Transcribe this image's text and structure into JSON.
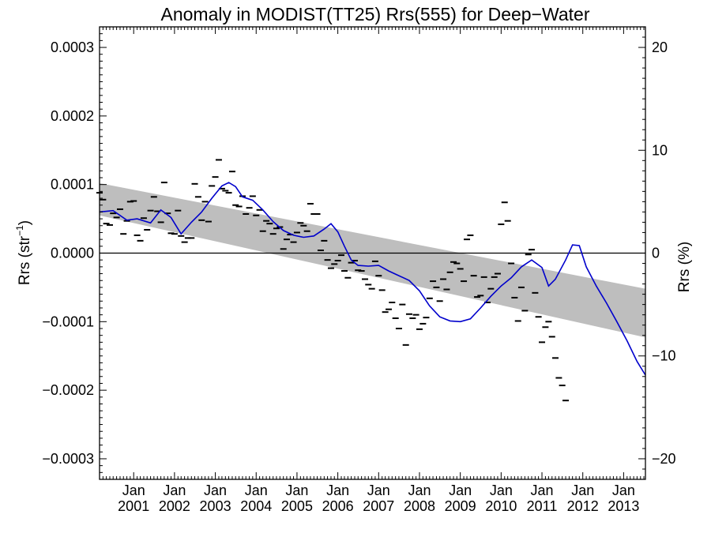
{
  "chart_data": {
    "type": "scatter",
    "title": "Anomaly in MODIST(TT25) Rrs(555) for Deep−Water",
    "ylabel_left": "Rrs (str",
    "ylabel_left_sup": "−1",
    "ylabel_left_close": ")",
    "ylabel_right": "Rrs (%)",
    "xlabel": "",
    "xlim": [
      "2000-03-01",
      "2013-07-15"
    ],
    "ylim_left": [
      -0.00033,
      0.00033
    ],
    "ylim_right": [
      -22,
      22
    ],
    "grid": false,
    "colors": {
      "points": "#000000",
      "smoothed": "#0000cc",
      "trend_band": "#bebebe",
      "zero_line": "#000000"
    },
    "x_ticks": [
      {
        "month": "Jan",
        "year": "2001",
        "date": "2001-01-01"
      },
      {
        "month": "Jan",
        "year": "2002",
        "date": "2002-01-01"
      },
      {
        "month": "Jan",
        "year": "2003",
        "date": "2003-01-01"
      },
      {
        "month": "Jan",
        "year": "2004",
        "date": "2004-01-01"
      },
      {
        "month": "Jan",
        "year": "2005",
        "date": "2005-01-01"
      },
      {
        "month": "Jan",
        "year": "2006",
        "date": "2006-01-01"
      },
      {
        "month": "Jan",
        "year": "2007",
        "date": "2007-01-01"
      },
      {
        "month": "Jan",
        "year": "2008",
        "date": "2008-01-01"
      },
      {
        "month": "Jan",
        "year": "2009",
        "date": "2009-01-01"
      },
      {
        "month": "Jan",
        "year": "2010",
        "date": "2010-01-01"
      },
      {
        "month": "Jan",
        "year": "2011",
        "date": "2011-01-01"
      },
      {
        "month": "Jan",
        "year": "2012",
        "date": "2012-01-01"
      },
      {
        "month": "Jan",
        "year": "2013",
        "date": "2013-01-01"
      }
    ],
    "y_ticks_left": [
      {
        "value": 0.0003,
        "label": "0.0003"
      },
      {
        "value": 0.0002,
        "label": "0.0002"
      },
      {
        "value": 0.0001,
        "label": "0.0001"
      },
      {
        "value": 0.0,
        "label": "0.0000"
      },
      {
        "value": -0.0001,
        "label": "−0.0001"
      },
      {
        "value": -0.0002,
        "label": "−0.0002"
      },
      {
        "value": -0.0003,
        "label": "−0.0003"
      }
    ],
    "y_ticks_right": [
      {
        "value": 20,
        "label": "20"
      },
      {
        "value": 10,
        "label": "10"
      },
      {
        "value": 0,
        "label": "0"
      },
      {
        "value": -10,
        "label": "−10"
      },
      {
        "value": -20,
        "label": "−20"
      }
    ],
    "trend_band": {
      "start": {
        "date": "2000-03-01",
        "upper": 0.000102,
        "lower": 5.5e-05
      },
      "end": {
        "date": "2013-07-15",
        "upper": -5.2e-05,
        "lower": -0.000123
      }
    },
    "series": [
      {
        "kind": "points",
        "values": [
          {
            "x": "2000-03-01",
            "y": 8.8e-05
          },
          {
            "x": "2000-04-01",
            "y": 7.8e-05
          },
          {
            "x": "2000-05-01",
            "y": 4.3e-05
          },
          {
            "x": "2000-06-01",
            "y": 4.1e-05
          },
          {
            "x": "2000-07-01",
            "y": 5.8e-05
          },
          {
            "x": "2000-08-01",
            "y": 5.2e-05
          },
          {
            "x": "2000-09-01",
            "y": 6.4e-05
          },
          {
            "x": "2000-10-01",
            "y": 2.8e-05
          },
          {
            "x": "2000-11-01",
            "y": 4.7e-05
          },
          {
            "x": "2000-12-01",
            "y": 7.5e-05
          },
          {
            "x": "2001-01-01",
            "y": 7.6e-05
          },
          {
            "x": "2001-02-01",
            "y": 2.6e-05
          },
          {
            "x": "2001-03-01",
            "y": 1.8e-05
          },
          {
            "x": "2001-04-01",
            "y": 5.1e-05
          },
          {
            "x": "2001-05-01",
            "y": 3.4e-05
          },
          {
            "x": "2001-06-01",
            "y": 6.2e-05
          },
          {
            "x": "2001-07-01",
            "y": 8.2e-05
          },
          {
            "x": "2001-08-01",
            "y": 6.1e-05
          },
          {
            "x": "2001-09-01",
            "y": 4.5e-05
          },
          {
            "x": "2001-10-01",
            "y": 0.000103
          },
          {
            "x": "2001-11-01",
            "y": 5.8e-05
          },
          {
            "x": "2001-12-01",
            "y": 2.9e-05
          },
          {
            "x": "2002-01-01",
            "y": 2.8e-05
          },
          {
            "x": "2002-02-01",
            "y": 6.2e-05
          },
          {
            "x": "2002-03-01",
            "y": 2.5e-05
          },
          {
            "x": "2002-04-01",
            "y": 1.6e-05
          },
          {
            "x": "2002-05-01",
            "y": 2.2e-05
          },
          {
            "x": "2002-06-01",
            "y": 2.2e-05
          },
          {
            "x": "2002-07-01",
            "y": 0.000101
          },
          {
            "x": "2002-08-01",
            "y": 8.2e-05
          },
          {
            "x": "2002-09-01",
            "y": 4.8e-05
          },
          {
            "x": "2002-10-01",
            "y": 7.5e-05
          },
          {
            "x": "2002-11-01",
            "y": 4.6e-05
          },
          {
            "x": "2002-12-01",
            "y": 9.8e-05
          },
          {
            "x": "2003-01-01",
            "y": 0.000111
          },
          {
            "x": "2003-02-01",
            "y": 0.000136
          },
          {
            "x": "2003-03-01",
            "y": 9.4e-05
          },
          {
            "x": "2003-04-01",
            "y": 9.1e-05
          },
          {
            "x": "2003-05-01",
            "y": 8.8e-05
          },
          {
            "x": "2003-06-01",
            "y": 0.000119
          },
          {
            "x": "2003-07-01",
            "y": 7e-05
          },
          {
            "x": "2003-08-01",
            "y": 6.8e-05
          },
          {
            "x": "2003-09-01",
            "y": 8.3e-05
          },
          {
            "x": "2003-10-01",
            "y": 5.7e-05
          },
          {
            "x": "2003-11-01",
            "y": 6.6e-05
          },
          {
            "x": "2003-12-01",
            "y": 8.3e-05
          },
          {
            "x": "2004-01-01",
            "y": 5.5e-05
          },
          {
            "x": "2004-02-01",
            "y": 6.3e-05
          },
          {
            "x": "2004-03-01",
            "y": 3.2e-05
          },
          {
            "x": "2004-04-01",
            "y": 4.7e-05
          },
          {
            "x": "2004-05-01",
            "y": 4.3e-05
          },
          {
            "x": "2004-06-01",
            "y": 2.8e-05
          },
          {
            "x": "2004-07-01",
            "y": 3.6e-05
          },
          {
            "x": "2004-08-01",
            "y": 3.8e-05
          },
          {
            "x": "2004-09-01",
            "y": 6e-06
          },
          {
            "x": "2004-10-01",
            "y": 2e-05
          },
          {
            "x": "2004-11-01",
            "y": 2.7e-05
          },
          {
            "x": "2004-12-01",
            "y": 1.6e-05
          },
          {
            "x": "2005-01-01",
            "y": 3e-05
          },
          {
            "x": "2005-02-01",
            "y": 4.4e-05
          },
          {
            "x": "2005-03-01",
            "y": 4e-05
          },
          {
            "x": "2005-04-01",
            "y": 3.2e-05
          },
          {
            "x": "2005-05-01",
            "y": 7.2e-05
          },
          {
            "x": "2005-06-01",
            "y": 5.7e-05
          },
          {
            "x": "2005-07-01",
            "y": 5.7e-05
          },
          {
            "x": "2005-08-01",
            "y": 4e-06
          },
          {
            "x": "2005-09-01",
            "y": 1.8e-05
          },
          {
            "x": "2005-10-01",
            "y": -1e-05
          },
          {
            "x": "2005-11-01",
            "y": -2.2e-05
          },
          {
            "x": "2005-12-01",
            "y": -1.6e-05
          },
          {
            "x": "2006-01-01",
            "y": -1.1e-05
          },
          {
            "x": "2006-02-01",
            "y": -3e-06
          },
          {
            "x": "2006-03-01",
            "y": -2.6e-05
          },
          {
            "x": "2006-04-01",
            "y": -3.6e-05
          },
          {
            "x": "2006-05-01",
            "y": -1.4e-05
          },
          {
            "x": "2006-06-01",
            "y": -1.1e-05
          },
          {
            "x": "2006-07-01",
            "y": -2.5e-05
          },
          {
            "x": "2006-08-01",
            "y": -2.6e-05
          },
          {
            "x": "2006-09-01",
            "y": -3.8e-05
          },
          {
            "x": "2006-10-01",
            "y": -4.6e-05
          },
          {
            "x": "2006-11-01",
            "y": -5.2e-05
          },
          {
            "x": "2006-12-01",
            "y": -1.2e-05
          },
          {
            "x": "2007-01-01",
            "y": -3.3e-05
          },
          {
            "x": "2007-02-01",
            "y": -5.4e-05
          },
          {
            "x": "2007-03-01",
            "y": -8.6e-05
          },
          {
            "x": "2007-04-01",
            "y": -8.2e-05
          },
          {
            "x": "2007-05-01",
            "y": -7.2e-05
          },
          {
            "x": "2007-06-01",
            "y": -9.5e-05
          },
          {
            "x": "2007-07-01",
            "y": -0.00011
          },
          {
            "x": "2007-08-01",
            "y": -7.5e-05
          },
          {
            "x": "2007-09-01",
            "y": -0.000134
          },
          {
            "x": "2007-10-01",
            "y": -8.9e-05
          },
          {
            "x": "2007-11-01",
            "y": -9.5e-05
          },
          {
            "x": "2007-12-01",
            "y": -9e-05
          },
          {
            "x": "2008-01-01",
            "y": -0.000111
          },
          {
            "x": "2008-02-01",
            "y": -0.000103
          },
          {
            "x": "2008-03-01",
            "y": -9.4e-05
          },
          {
            "x": "2008-04-01",
            "y": -6.6e-05
          },
          {
            "x": "2008-05-01",
            "y": -4.1e-05
          },
          {
            "x": "2008-06-01",
            "y": -5e-05
          },
          {
            "x": "2008-07-01",
            "y": -7e-05
          },
          {
            "x": "2008-08-01",
            "y": -3.8e-05
          },
          {
            "x": "2008-09-01",
            "y": -5.3e-05
          },
          {
            "x": "2008-10-01",
            "y": -2.8e-05
          },
          {
            "x": "2008-11-01",
            "y": -1.3e-05
          },
          {
            "x": "2008-12-01",
            "y": -1.5e-05
          },
          {
            "x": "2009-01-01",
            "y": -2.3e-05
          },
          {
            "x": "2009-02-01",
            "y": -4.1e-05
          },
          {
            "x": "2009-03-01",
            "y": 2e-05
          },
          {
            "x": "2009-04-01",
            "y": 2.6e-05
          },
          {
            "x": "2009-05-01",
            "y": -3.3e-05
          },
          {
            "x": "2009-06-01",
            "y": -6.4e-05
          },
          {
            "x": "2009-07-01",
            "y": -6.2e-05
          },
          {
            "x": "2009-08-01",
            "y": -3.5e-05
          },
          {
            "x": "2009-09-01",
            "y": -7.2e-05
          },
          {
            "x": "2009-10-01",
            "y": -5.2e-05
          },
          {
            "x": "2009-11-01",
            "y": -3.5e-05
          },
          {
            "x": "2009-12-01",
            "y": -3e-05
          },
          {
            "x": "2010-01-01",
            "y": 4.2e-05
          },
          {
            "x": "2010-02-01",
            "y": 7.4e-05
          },
          {
            "x": "2010-03-01",
            "y": 4.7e-05
          },
          {
            "x": "2010-04-01",
            "y": -1.5e-05
          },
          {
            "x": "2010-05-01",
            "y": -6.5e-05
          },
          {
            "x": "2010-06-01",
            "y": -9.9e-05
          },
          {
            "x": "2010-07-01",
            "y": -5e-05
          },
          {
            "x": "2010-08-01",
            "y": -8.4e-05
          },
          {
            "x": "2010-09-01",
            "y": -2e-06
          },
          {
            "x": "2010-10-01",
            "y": 5e-06
          },
          {
            "x": "2010-11-01",
            "y": -5.8e-05
          },
          {
            "x": "2010-12-01",
            "y": -9.3e-05
          },
          {
            "x": "2011-01-01",
            "y": -0.00013
          },
          {
            "x": "2011-02-01",
            "y": -0.000108
          },
          {
            "x": "2011-03-01",
            "y": -0.0001
          },
          {
            "x": "2011-04-01",
            "y": -0.000122
          },
          {
            "x": "2011-05-01",
            "y": -0.000153
          },
          {
            "x": "2011-06-01",
            "y": -0.000182
          },
          {
            "x": "2011-07-01",
            "y": -0.000193
          },
          {
            "x": "2011-08-01",
            "y": -0.000215
          }
        ]
      },
      {
        "kind": "smoothed-line",
        "values": [
          {
            "x": "2000-03-01",
            "y": 6e-05
          },
          {
            "x": "2000-07-01",
            "y": 6.2e-05
          },
          {
            "x": "2000-11-01",
            "y": 4.8e-05
          },
          {
            "x": "2001-02-01",
            "y": 5e-05
          },
          {
            "x": "2001-06-01",
            "y": 4.4e-05
          },
          {
            "x": "2001-09-01",
            "y": 6.3e-05
          },
          {
            "x": "2001-12-01",
            "y": 5.2e-05
          },
          {
            "x": "2002-03-01",
            "y": 2.8e-05
          },
          {
            "x": "2002-06-01",
            "y": 4.5e-05
          },
          {
            "x": "2002-09-01",
            "y": 6e-05
          },
          {
            "x": "2002-12-01",
            "y": 8e-05
          },
          {
            "x": "2003-03-01",
            "y": 9.8e-05
          },
          {
            "x": "2003-05-01",
            "y": 0.000103
          },
          {
            "x": "2003-07-01",
            "y": 9.7e-05
          },
          {
            "x": "2003-09-01",
            "y": 8.2e-05
          },
          {
            "x": "2003-12-01",
            "y": 7.7e-05
          },
          {
            "x": "2004-03-01",
            "y": 6.3e-05
          },
          {
            "x": "2004-06-01",
            "y": 4.6e-05
          },
          {
            "x": "2004-09-01",
            "y": 3.3e-05
          },
          {
            "x": "2004-12-01",
            "y": 2.6e-05
          },
          {
            "x": "2005-03-01",
            "y": 2.3e-05
          },
          {
            "x": "2005-06-01",
            "y": 2.5e-05
          },
          {
            "x": "2005-09-01",
            "y": 3.5e-05
          },
          {
            "x": "2005-11-01",
            "y": 4.3e-05
          },
          {
            "x": "2006-01-01",
            "y": 3.1e-05
          },
          {
            "x": "2006-03-01",
            "y": 1e-05
          },
          {
            "x": "2006-05-01",
            "y": -1e-05
          },
          {
            "x": "2006-07-01",
            "y": -1.8e-05
          },
          {
            "x": "2006-10-01",
            "y": -1.9e-05
          },
          {
            "x": "2007-01-01",
            "y": -1.8e-05
          },
          {
            "x": "2007-04-01",
            "y": -2.6e-05
          },
          {
            "x": "2007-07-01",
            "y": -3.3e-05
          },
          {
            "x": "2007-10-01",
            "y": -4e-05
          },
          {
            "x": "2008-01-01",
            "y": -5.5e-05
          },
          {
            "x": "2008-04-01",
            "y": -7.7e-05
          },
          {
            "x": "2008-07-01",
            "y": -9.3e-05
          },
          {
            "x": "2008-10-01",
            "y": -9.9e-05
          },
          {
            "x": "2009-01-01",
            "y": -0.0001
          },
          {
            "x": "2009-04-01",
            "y": -9.6e-05
          },
          {
            "x": "2009-07-01",
            "y": -8e-05
          },
          {
            "x": "2009-10-01",
            "y": -6.3e-05
          },
          {
            "x": "2010-01-01",
            "y": -4.8e-05
          },
          {
            "x": "2010-04-01",
            "y": -3.6e-05
          },
          {
            "x": "2010-07-01",
            "y": -2e-05
          },
          {
            "x": "2010-10-01",
            "y": -1e-05
          },
          {
            "x": "2011-01-01",
            "y": -2.1e-05
          },
          {
            "x": "2011-03-01",
            "y": -4.8e-05
          },
          {
            "x": "2011-05-01",
            "y": -3.8e-05
          },
          {
            "x": "2011-08-01",
            "y": -1e-05
          },
          {
            "x": "2011-10-01",
            "y": 1.2e-05
          },
          {
            "x": "2011-12-01",
            "y": 1.1e-05
          },
          {
            "x": "2012-02-01",
            "y": -2e-05
          },
          {
            "x": "2012-05-01",
            "y": -4.8e-05
          },
          {
            "x": "2012-08-01",
            "y": -7.3e-05
          },
          {
            "x": "2012-11-01",
            "y": -0.0001
          },
          {
            "x": "2013-02-01",
            "y": -0.000128
          },
          {
            "x": "2013-05-01",
            "y": -0.000158
          },
          {
            "x": "2013-07-15",
            "y": -0.000178
          }
        ]
      }
    ]
  }
}
